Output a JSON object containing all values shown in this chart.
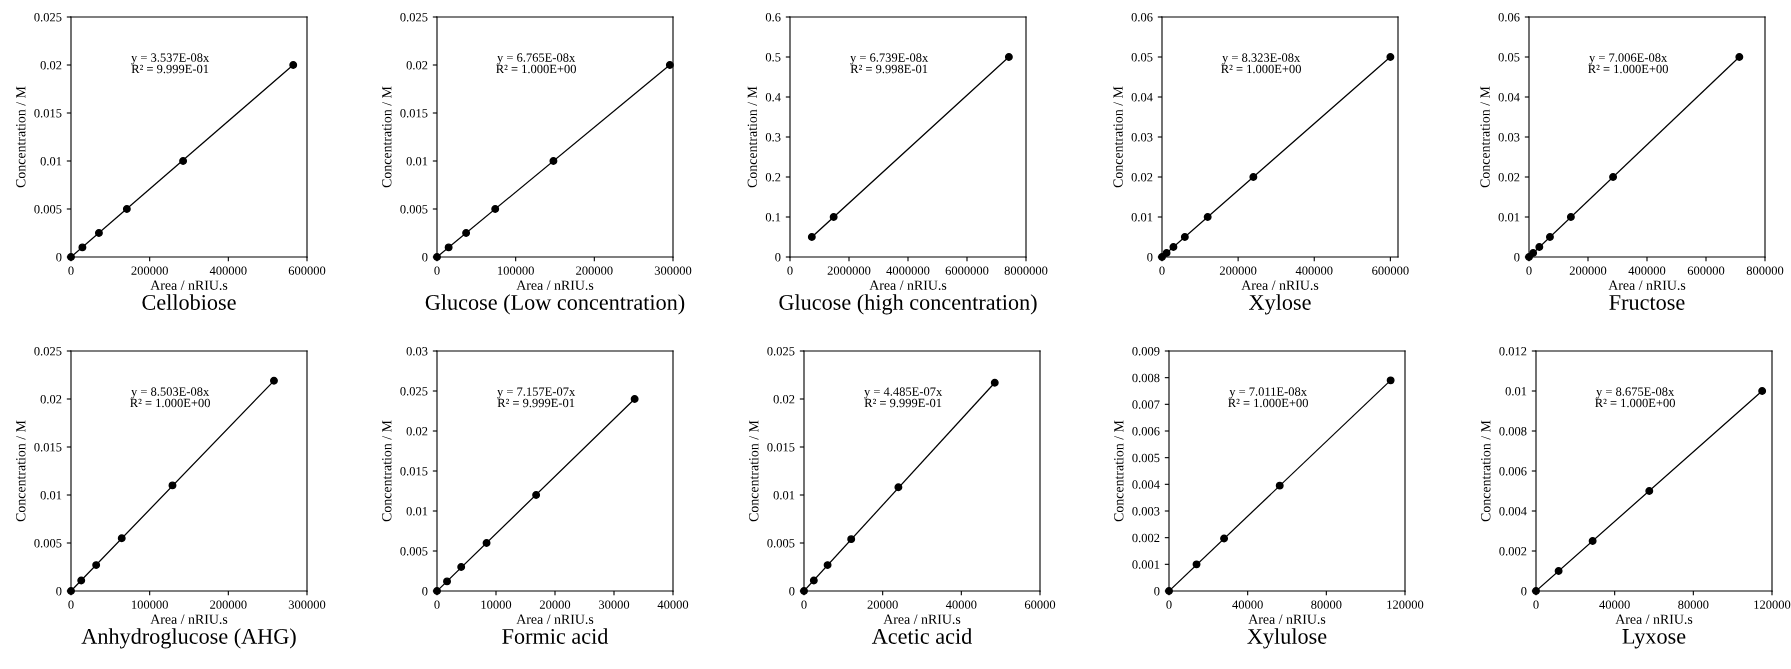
{
  "chart_data": [
    {
      "type": "scatter",
      "title": "Cellobiose",
      "xlabel": "Area / nRIU.s",
      "ylabel": "Concentration / M",
      "annotations": [
        "y = 3.537E-08x\nR² = 9.999E-01"
      ],
      "xlim": [
        0,
        600000
      ],
      "xticks": [
        0,
        200000,
        400000,
        600000
      ],
      "ylim": [
        0,
        0.025
      ],
      "yticks": [
        0,
        0.005,
        0.01,
        0.015,
        0.02,
        0.025
      ],
      "series": [
        {
          "marker": "circle",
          "color": "#000000",
          "x": [
            0,
            29000,
            71000,
            142000,
            285000,
            565000
          ],
          "values": [
            0,
            0.001,
            0.0025,
            0.005,
            0.01,
            0.02
          ]
        },
        {
          "type": "line",
          "color": "#000000",
          "x": [
            0,
            565000
          ],
          "values": [
            0,
            0.02
          ]
        }
      ]
    },
    {
      "type": "scatter",
      "title": "Glucose (Low concentration)",
      "xlabel": "Area / nRIU.s",
      "ylabel": "Concentration / M",
      "annotations": [
        "y = 6.765E-08x\nR² = 1.000E+00"
      ],
      "xlim": [
        0,
        300000
      ],
      "xticks": [
        0,
        100000,
        200000,
        300000
      ],
      "ylim": [
        0,
        0.025
      ],
      "yticks": [
        0,
        0.005,
        0.01,
        0.015,
        0.02,
        0.025
      ],
      "series": [
        {
          "marker": "circle",
          "color": "#000000",
          "x": [
            0,
            14800,
            37000,
            74000,
            148000,
            296000
          ],
          "values": [
            0,
            0.001,
            0.0025,
            0.005,
            0.01,
            0.02
          ]
        },
        {
          "type": "line",
          "color": "#000000",
          "x": [
            0,
            296000
          ],
          "values": [
            0,
            0.02
          ]
        }
      ]
    },
    {
      "type": "scatter",
      "title": "Glucose (high concentration)",
      "xlabel": "Area / nRIU.s",
      "ylabel": "Concentration / M",
      "annotations": [
        "y = 6.739E-08x\nR² = 9.998E-01"
      ],
      "xlim": [
        0,
        8000000
      ],
      "xticks": [
        0,
        2000000,
        4000000,
        6000000,
        8000000
      ],
      "ylim": [
        0,
        0.6
      ],
      "yticks": [
        0,
        0.1,
        0.2,
        0.3,
        0.4,
        0.5,
        0.6
      ],
      "series": [
        {
          "marker": "circle",
          "color": "#000000",
          "x": [
            740000,
            1480000,
            7420000
          ],
          "values": [
            0.05,
            0.1,
            0.5
          ]
        },
        {
          "type": "line",
          "color": "#000000",
          "x": [
            740000,
            7420000
          ],
          "values": [
            0.05,
            0.5
          ]
        }
      ]
    },
    {
      "type": "scatter",
      "title": "Xylose",
      "xlabel": "Area / nRIU.s",
      "ylabel": "Concentration / M",
      "annotations": [
        "y = 8.323E-08x\nR² = 1.000E+00"
      ],
      "xlim": [
        0,
        620000
      ],
      "xticks": [
        0,
        200000,
        400000,
        600000
      ],
      "ylim": [
        0,
        0.06
      ],
      "yticks": [
        0,
        0.01,
        0.02,
        0.03,
        0.04,
        0.05,
        0.06
      ],
      "series": [
        {
          "marker": "circle",
          "color": "#000000",
          "x": [
            0,
            12000,
            30000,
            60000,
            120000,
            240000,
            600000
          ],
          "values": [
            0,
            0.001,
            0.0025,
            0.005,
            0.01,
            0.02,
            0.05
          ]
        },
        {
          "type": "line",
          "color": "#000000",
          "x": [
            0,
            600000
          ],
          "values": [
            0,
            0.05
          ]
        }
      ]
    },
    {
      "type": "scatter",
      "title": "Fructose",
      "xlabel": "Area / nRIU.s",
      "ylabel": "Concentration / M",
      "annotations": [
        "y = 7.006E-08x\nR² = 1.000E+00"
      ],
      "xlim": [
        0,
        800000
      ],
      "xticks": [
        0,
        200000,
        400000,
        600000,
        800000
      ],
      "ylim": [
        0,
        0.06
      ],
      "yticks": [
        0,
        0.01,
        0.02,
        0.03,
        0.04,
        0.05,
        0.06
      ],
      "series": [
        {
          "marker": "circle",
          "color": "#000000",
          "x": [
            0,
            14000,
            35000,
            71000,
            142000,
            285000,
            713000
          ],
          "values": [
            0,
            0.001,
            0.0025,
            0.005,
            0.01,
            0.02,
            0.05
          ]
        },
        {
          "type": "line",
          "color": "#000000",
          "x": [
            0,
            713000
          ],
          "values": [
            0,
            0.05
          ]
        }
      ]
    },
    {
      "type": "scatter",
      "title": "Anhydroglucose (AHG)",
      "xlabel": "Area / nRIU.s",
      "ylabel": "Concentration / M",
      "annotations": [
        "y = 8.503E-08x\nR² = 1.000E+00"
      ],
      "xlim": [
        0,
        300000
      ],
      "xticks": [
        0,
        100000,
        200000,
        300000
      ],
      "ylim": [
        0,
        0.025
      ],
      "yticks": [
        0,
        0.005,
        0.01,
        0.015,
        0.02,
        0.025
      ],
      "series": [
        {
          "marker": "circle",
          "color": "#000000",
          "x": [
            0,
            13000,
            32000,
            64500,
            129000,
            258000
          ],
          "values": [
            0,
            0.0011,
            0.0027,
            0.0055,
            0.011,
            0.0219
          ]
        },
        {
          "type": "line",
          "color": "#000000",
          "x": [
            0,
            258000
          ],
          "values": [
            0,
            0.0219
          ]
        }
      ]
    },
    {
      "type": "scatter",
      "title": "Formic acid",
      "xlabel": "Area / nRIU.s",
      "ylabel": "Concentration / M",
      "annotations": [
        "y = 7.157E-07x\nR² = 9.999E-01"
      ],
      "xlim": [
        0,
        40000
      ],
      "xticks": [
        0,
        10000,
        20000,
        30000,
        40000
      ],
      "ylim": [
        0,
        0.03
      ],
      "yticks": [
        0,
        0.005,
        0.01,
        0.015,
        0.02,
        0.025,
        0.03
      ],
      "series": [
        {
          "marker": "circle",
          "color": "#000000",
          "x": [
            0,
            1700,
            4100,
            8400,
            16800,
            33500
          ],
          "values": [
            0,
            0.0012,
            0.003,
            0.006,
            0.012,
            0.024
          ]
        },
        {
          "type": "line",
          "color": "#000000",
          "x": [
            0,
            33500
          ],
          "values": [
            0,
            0.024
          ]
        }
      ]
    },
    {
      "type": "scatter",
      "title": "Acetic acid",
      "xlabel": "Area / nRIU.s",
      "ylabel": "Concentration / M",
      "annotations": [
        "y = 4.485E-07x\nR² = 9.999E-01"
      ],
      "xlim": [
        0,
        60000
      ],
      "xticks": [
        0,
        20000,
        40000,
        60000
      ],
      "ylim": [
        0,
        0.025
      ],
      "yticks": [
        0,
        0.005,
        0.01,
        0.015,
        0.02,
        0.025
      ],
      "series": [
        {
          "marker": "circle",
          "color": "#000000",
          "x": [
            0,
            2500,
            6000,
            12000,
            24000,
            48500
          ],
          "values": [
            0,
            0.0011,
            0.0027,
            0.0054,
            0.0108,
            0.0217
          ]
        },
        {
          "type": "line",
          "color": "#000000",
          "x": [
            0,
            48500
          ],
          "values": [
            0,
            0.0217
          ]
        }
      ]
    },
    {
      "type": "scatter",
      "title": "Xylulose",
      "xlabel": "Area / nRIU.s",
      "ylabel": "Concentration / M",
      "annotations": [
        "y = 7.011E-08x\nR² = 1.000E+00"
      ],
      "xlim": [
        0,
        120000
      ],
      "xticks": [
        0,
        40000,
        80000,
        120000
      ],
      "ylim": [
        0,
        0.009
      ],
      "yticks": [
        0,
        0.001,
        0.002,
        0.003,
        0.004,
        0.005,
        0.006,
        0.007,
        0.008,
        0.009
      ],
      "series": [
        {
          "marker": "circle",
          "color": "#000000",
          "x": [
            0,
            14000,
            28000,
            56300,
            112700
          ],
          "values": [
            0,
            0.001,
            0.00197,
            0.00395,
            0.0079
          ]
        },
        {
          "type": "line",
          "color": "#000000",
          "x": [
            0,
            112700
          ],
          "values": [
            0,
            0.0079
          ]
        }
      ]
    },
    {
      "type": "scatter",
      "title": "Lyxose",
      "xlabel": "Area / nRIU.s",
      "ylabel": "Concentration / M",
      "annotations": [
        "y = 8.675E-08x\nR² = 1.000E+00"
      ],
      "xlim": [
        0,
        120000
      ],
      "xticks": [
        0,
        40000,
        80000,
        120000
      ],
      "ylim": [
        0,
        0.012
      ],
      "yticks": [
        0,
        0.002,
        0.004,
        0.006,
        0.008,
        0.01,
        0.012
      ],
      "series": [
        {
          "marker": "circle",
          "color": "#000000",
          "x": [
            0,
            11500,
            28800,
            57600,
            115000
          ],
          "values": [
            0,
            0.001,
            0.0025,
            0.005,
            0.01
          ]
        },
        {
          "type": "line",
          "color": "#000000",
          "x": [
            0,
            115000
          ],
          "values": [
            0,
            0.01
          ]
        }
      ]
    }
  ]
}
